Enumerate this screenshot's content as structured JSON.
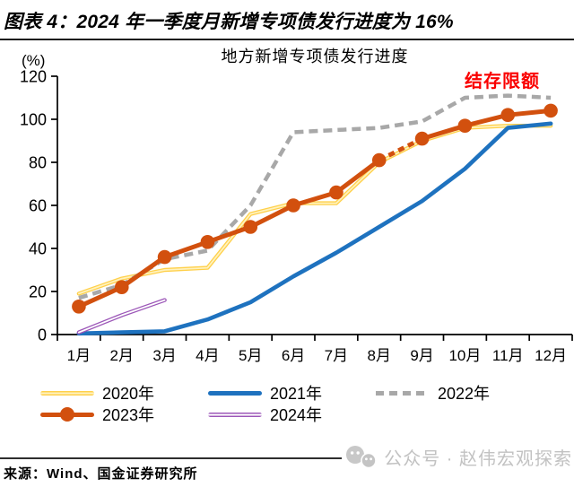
{
  "header": {
    "title": "图表 4：2024 年一季度月新增专项债发行进度为 16%"
  },
  "chart": {
    "title": "地方新增专项债发行进度",
    "unit_label": "(%)",
    "annotation": "结存限额"
  },
  "chart_data": {
    "type": "line",
    "title": "地方新增专项债发行进度",
    "xlabel": "",
    "ylabel": "(%)",
    "ylim": [
      0,
      120
    ],
    "yticks": [
      0,
      20,
      40,
      60,
      80,
      100,
      120
    ],
    "grid": false,
    "legend_position": "bottom",
    "categories": [
      "1月",
      "2月",
      "3月",
      "4月",
      "5月",
      "6月",
      "7月",
      "8月",
      "9月",
      "10月",
      "11月",
      "12月"
    ],
    "annotation": {
      "text": "结存限额",
      "color": "#FA0000",
      "target_series": "2022年"
    },
    "series": [
      {
        "name": "2020年",
        "color": "#FFD04A",
        "inner_color": "#FFF2BE",
        "style": "solid-inner",
        "values": [
          19,
          26,
          30,
          31,
          56,
          61,
          61,
          80,
          90,
          96,
          97,
          97
        ]
      },
      {
        "name": "2021年",
        "color": "#1E72BF",
        "style": "solid",
        "values": [
          0.5,
          1,
          1.5,
          7,
          15,
          27,
          38,
          50,
          62,
          77,
          96,
          98
        ]
      },
      {
        "name": "2022年",
        "color": "#A8A8A8",
        "style": "dashed",
        "values": [
          17,
          23,
          35,
          39,
          60,
          94,
          95,
          96,
          99,
          110,
          111,
          110
        ]
      },
      {
        "name": "2023年",
        "color": "#D2500E",
        "style": "solid-marker",
        "marker": "circle",
        "dashed_segment": [
          7,
          8
        ],
        "values": [
          13,
          22,
          36,
          43,
          50,
          60,
          66,
          81,
          91,
          97,
          102,
          104
        ]
      },
      {
        "name": "2024年",
        "color": "#9C57B8",
        "inner_color": "#FFFFFF",
        "style": "solid-inner",
        "values": [
          1,
          9,
          16
        ]
      }
    ]
  },
  "footer": {
    "source": "来源：Wind、国金证券研究所",
    "watermark": "公众号 · 赵伟宏观探索"
  }
}
